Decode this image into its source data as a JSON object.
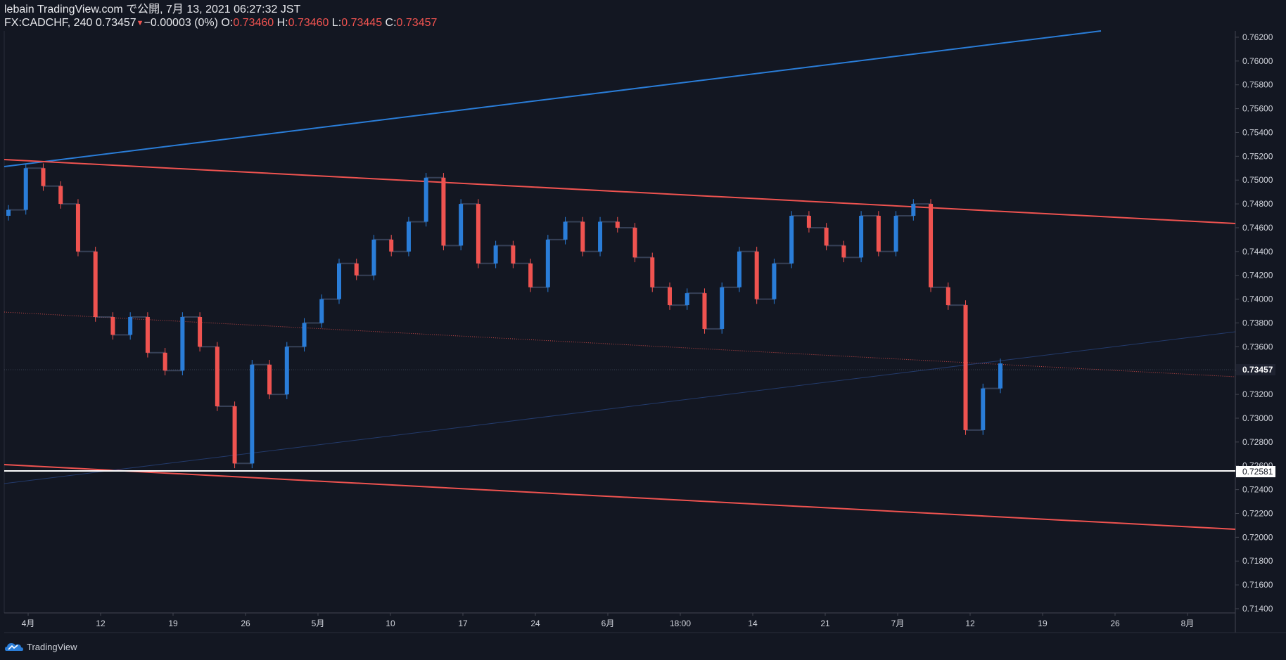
{
  "header": {
    "line1": "lebain TradingView.com で公開, 7月 13, 2021 06:27:32 JST",
    "symbol": "FX:CADCHF, 240",
    "last": "0.73457",
    "change": "−0.00003 (0%)",
    "o_label": "O:",
    "o": "0.73460",
    "h_label": "H:",
    "h": "0.73460",
    "l_label": "L:",
    "l": "0.73445",
    "c_label": "C:",
    "c": "0.73457"
  },
  "footer": {
    "brand": "TradingView"
  },
  "colors": {
    "background": "#131722",
    "up": "#2a7dd8",
    "down": "#ef5350",
    "trend_red": "#ef5350",
    "trend_blue": "#2a7dd8",
    "support": "#ffffff"
  },
  "chart_data": {
    "type": "candlestick",
    "symbol": "FX:CADCHF",
    "interval": "240",
    "ylim": [
      0.714,
      0.763
    ],
    "y_ticks": [
      "0.76200",
      "0.76000",
      "0.75800",
      "0.75600",
      "0.75400",
      "0.75200",
      "0.75000",
      "0.74800",
      "0.74600",
      "0.74400",
      "0.74200",
      "0.74000",
      "0.73800",
      "0.73600",
      "0.73400",
      "0.73200",
      "0.73000",
      "0.72800",
      "0.72600",
      "0.72400",
      "0.72200",
      "0.72000",
      "0.71800",
      "0.71600",
      "0.71400"
    ],
    "x_ticks": [
      "4月",
      "12",
      "19",
      "26",
      "5月",
      "10",
      "17",
      "24",
      "6月",
      "18:00",
      "14",
      "21",
      "7月",
      "12",
      "19",
      "26",
      "8月"
    ],
    "price_label": "0.73457",
    "support_label": "0.72581",
    "support_level": 0.72581,
    "series": [
      {
        "x": "4月",
        "close": 0.7475
      },
      {
        "x": "",
        "close": 0.751
      },
      {
        "x": "",
        "close": 0.7495
      },
      {
        "x": "",
        "close": 0.748
      },
      {
        "x": "",
        "close": 0.744
      },
      {
        "x": "",
        "close": 0.7385
      },
      {
        "x": "",
        "close": 0.737
      },
      {
        "x": "12",
        "close": 0.7385
      },
      {
        "x": "",
        "close": 0.7355
      },
      {
        "x": "",
        "close": 0.734
      },
      {
        "x": "19",
        "close": 0.7385
      },
      {
        "x": "",
        "close": 0.736
      },
      {
        "x": "",
        "close": 0.731
      },
      {
        "x": "",
        "close": 0.7262
      },
      {
        "x": "26",
        "close": 0.7345
      },
      {
        "x": "",
        "close": 0.732
      },
      {
        "x": "",
        "close": 0.736
      },
      {
        "x": "",
        "close": 0.738
      },
      {
        "x": "5月",
        "close": 0.74
      },
      {
        "x": "",
        "close": 0.743
      },
      {
        "x": "",
        "close": 0.742
      },
      {
        "x": "10",
        "close": 0.745
      },
      {
        "x": "",
        "close": 0.744
      },
      {
        "x": "",
        "close": 0.7465
      },
      {
        "x": "",
        "close": 0.7502
      },
      {
        "x": "17",
        "close": 0.7445
      },
      {
        "x": "",
        "close": 0.748
      },
      {
        "x": "",
        "close": 0.743
      },
      {
        "x": "24",
        "close": 0.7445
      },
      {
        "x": "",
        "close": 0.743
      },
      {
        "x": "",
        "close": 0.741
      },
      {
        "x": "",
        "close": 0.745
      },
      {
        "x": "6月",
        "close": 0.7465
      },
      {
        "x": "",
        "close": 0.744
      },
      {
        "x": "",
        "close": 0.7465
      },
      {
        "x": "18:00",
        "close": 0.746
      },
      {
        "x": "",
        "close": 0.7435
      },
      {
        "x": "",
        "close": 0.741
      },
      {
        "x": "",
        "close": 0.7395
      },
      {
        "x": "14",
        "close": 0.7405
      },
      {
        "x": "",
        "close": 0.7375
      },
      {
        "x": "",
        "close": 0.741
      },
      {
        "x": "",
        "close": 0.744
      },
      {
        "x": "21",
        "close": 0.74
      },
      {
        "x": "",
        "close": 0.743
      },
      {
        "x": "",
        "close": 0.747
      },
      {
        "x": "",
        "close": 0.746
      },
      {
        "x": "",
        "close": 0.7445
      },
      {
        "x": "",
        "close": 0.7435
      },
      {
        "x": "7月",
        "close": 0.747
      },
      {
        "x": "",
        "close": 0.744
      },
      {
        "x": "",
        "close": 0.747
      },
      {
        "x": "",
        "close": 0.748
      },
      {
        "x": "",
        "close": 0.741
      },
      {
        "x": "",
        "close": 0.7395
      },
      {
        "x": "",
        "close": 0.729
      },
      {
        "x": "12",
        "close": 0.7325
      },
      {
        "x": "",
        "close": 0.7346
      }
    ]
  }
}
